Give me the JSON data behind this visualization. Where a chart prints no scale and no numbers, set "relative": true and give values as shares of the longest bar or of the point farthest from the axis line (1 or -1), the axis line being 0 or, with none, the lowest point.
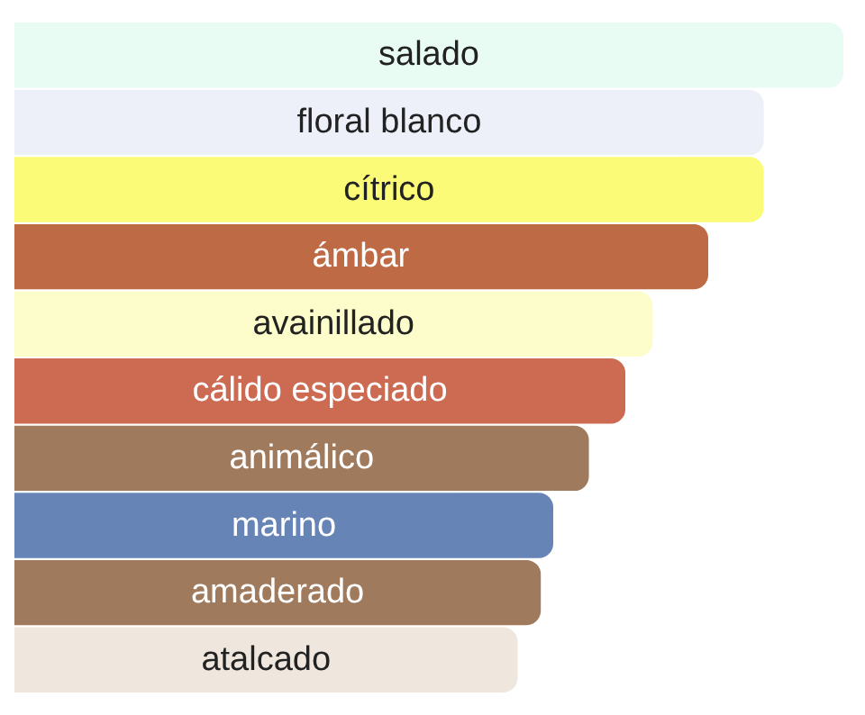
{
  "chart_data": {
    "type": "bar",
    "orientation": "horizontal",
    "relative": true,
    "categories": [
      "salado",
      "floral blanco",
      "cítrico",
      "ámbar",
      "avainillado",
      "cálido especiado",
      "animálico",
      "marino",
      "amaderado",
      "atalcado"
    ],
    "values": [
      1,
      0.904,
      0.904,
      0.837,
      0.77,
      0.737,
      0.693,
      0.65,
      0.635,
      0.607
    ],
    "colors": [
      "#e8fcf4",
      "#eef0f9",
      "#fbfb78",
      "#bd6a45",
      "#fdfdcc",
      "#cc6b52",
      "#a07a5d",
      "#6684b6",
      "#a07a5d",
      "#efe7dd"
    ]
  }
}
